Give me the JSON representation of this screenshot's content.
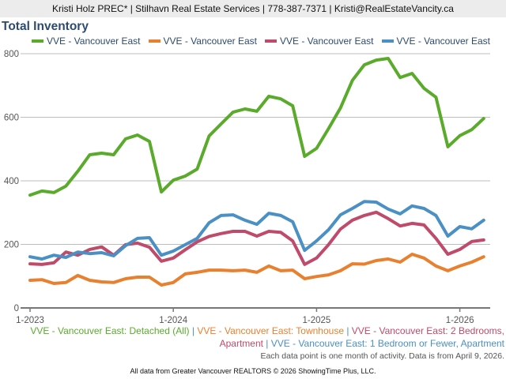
{
  "header": {
    "text": "Kristi Holz PREC* | Stilhavn Real Estate Services | 778-387-7371 | Kristi@RealEstateVancity.ca"
  },
  "chart_data": {
    "type": "line",
    "title": "Total Inventory",
    "xlabel": "",
    "ylabel": "",
    "ylim": [
      0,
      800
    ],
    "yticks": [
      "0",
      "200",
      "400",
      "600",
      "800"
    ],
    "ytick_values": [
      0,
      200,
      400,
      600,
      800
    ],
    "xticks": [
      "1-2023",
      "1-2024",
      "1-2025",
      "1-2026"
    ],
    "xtick_index": [
      0,
      12,
      24,
      36
    ],
    "grid": true,
    "legend_position": "top-right",
    "x": [
      "1-2023",
      "2-2023",
      "3-2023",
      "4-2023",
      "5-2023",
      "6-2023",
      "7-2023",
      "8-2023",
      "9-2023",
      "10-2023",
      "11-2023",
      "12-2023",
      "1-2024",
      "2-2024",
      "3-2024",
      "4-2024",
      "5-2024",
      "6-2024",
      "7-2024",
      "8-2024",
      "9-2024",
      "10-2024",
      "11-2024",
      "12-2024",
      "1-2025",
      "2-2025",
      "3-2025",
      "4-2025",
      "5-2025",
      "6-2025",
      "7-2025",
      "8-2025",
      "9-2025",
      "10-2025",
      "11-2025",
      "12-2025",
      "1-2026",
      "2-2026",
      "3-2026"
    ],
    "series": [
      {
        "name": "VVE - Vancouver East",
        "full_name": "VVE - Vancouver East: Detached (All)",
        "color": "#5aab2c",
        "values": [
          355,
          368,
          363,
          383,
          430,
          482,
          487,
          482,
          532,
          544,
          524,
          365,
          402,
          415,
          437,
          541,
          579,
          616,
          626,
          619,
          666,
          658,
          636,
          477,
          502,
          564,
          629,
          716,
          765,
          780,
          785,
          725,
          738,
          691,
          663,
          507,
          542,
          561,
          596
        ]
      },
      {
        "name": "VVE - Vancouver East",
        "full_name": "VVE - Vancouver East: Townhouse",
        "color": "#e8812f",
        "values": [
          87,
          89,
          77,
          80,
          102,
          87,
          82,
          80,
          92,
          97,
          97,
          72,
          80,
          107,
          112,
          119,
          119,
          117,
          119,
          112,
          132,
          117,
          119,
          92,
          99,
          104,
          117,
          139,
          138,
          149,
          154,
          144,
          169,
          157,
          132,
          117,
          132,
          144,
          161
        ]
      },
      {
        "name": "VVE - Vancouver East",
        "full_name": "VVE - Vancouver East: 2 Bedrooms, Apartment",
        "color": "#bf4a6a",
        "values": [
          139,
          137,
          142,
          176,
          166,
          184,
          192,
          166,
          199,
          204,
          191,
          147,
          157,
          183,
          208,
          225,
          234,
          241,
          241,
          226,
          241,
          238,
          211,
          137,
          157,
          199,
          248,
          276,
          291,
          301,
          281,
          258,
          266,
          261,
          219,
          169,
          184,
          209,
          214
        ]
      },
      {
        "name": "VVE - Vancouver East",
        "full_name": "VVE - Vancouver East: 1 Bedroom or Fewer, Apartment",
        "color": "#4a90c4",
        "values": [
          161,
          154,
          166,
          159,
          176,
          171,
          174,
          164,
          196,
          219,
          221,
          166,
          179,
          199,
          219,
          268,
          291,
          293,
          276,
          263,
          298,
          291,
          271,
          181,
          211,
          246,
          293,
          313,
          335,
          333,
          311,
          296,
          321,
          313,
          291,
          226,
          256,
          249,
          276
        ]
      }
    ],
    "separator": " | ",
    "note": "Each data point is one month of activity. Data is from April 9, 2026.",
    "credit": "All data from Greater Vancouver REALTORS © 2026 ShowingTime Plus, LLC."
  }
}
